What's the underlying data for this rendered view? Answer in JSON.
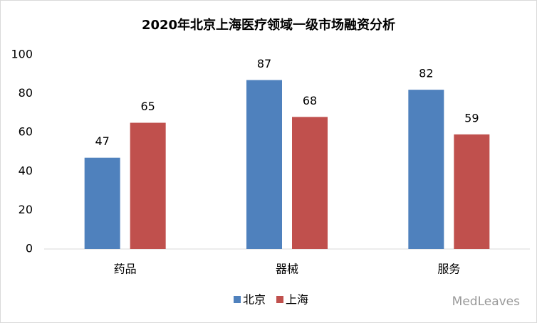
{
  "chart_data": {
    "type": "bar",
    "title": "2020年北京上海医疗领域一级市场融资分析",
    "categories": [
      "药品",
      "器械",
      "服务"
    ],
    "series": [
      {
        "name": "北京",
        "color": "#4f81bd",
        "values": [
          47,
          87,
          82
        ]
      },
      {
        "name": "上海",
        "color": "#c0504d",
        "values": [
          65,
          68,
          59
        ]
      }
    ],
    "ylim": [
      0,
      100
    ],
    "yticks": [
      0,
      20,
      40,
      60,
      80,
      100
    ],
    "grid": false,
    "legend": "bottom"
  },
  "watermark": "MedLeaves"
}
